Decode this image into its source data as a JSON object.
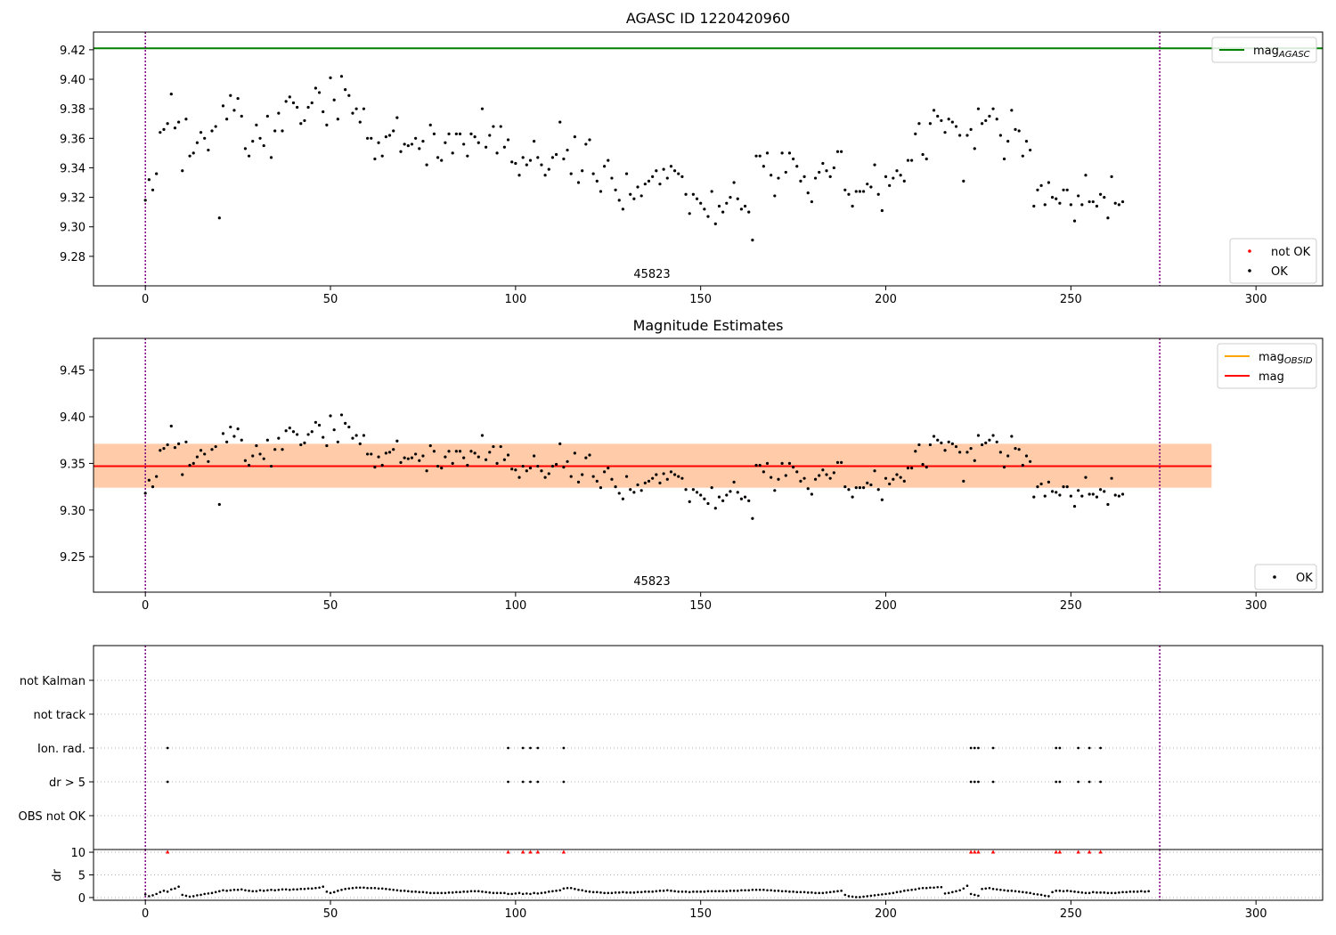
{
  "chart_data": [
    {
      "type": "scatter",
      "title": "AGASC ID 1220420960",
      "annotation": "45823",
      "xlim": [
        -14,
        318
      ],
      "ylim": [
        9.26,
        9.432
      ],
      "xticks": [
        0,
        50,
        100,
        150,
        200,
        250,
        300
      ],
      "yticks": [
        9.28,
        9.3,
        9.32,
        9.34,
        9.36,
        9.38,
        9.4,
        9.42
      ],
      "vlines": [
        0,
        274
      ],
      "grid": false,
      "hlines": [
        {
          "y": 9.421,
          "color": "#008000",
          "label_base": "mag",
          "label_sub": "AGASC"
        }
      ],
      "legends": [
        {
          "position": "top-right",
          "entries": [
            {
              "kind": "line",
              "color": "#008000",
              "base": "mag",
              "sub": "AGASC"
            }
          ]
        },
        {
          "position": "bottom-right",
          "entries": [
            {
              "kind": "marker",
              "color": "#ff0000",
              "base": "not OK",
              "sub": ""
            },
            {
              "kind": "marker",
              "color": "#000000",
              "base": "OK",
              "sub": ""
            }
          ]
        }
      ],
      "series": [
        {
          "name": "OK",
          "color": "#000000",
          "points": "mag"
        }
      ]
    },
    {
      "type": "scatter",
      "title": "Magnitude Estimates",
      "annotation": "45823",
      "xlim": [
        -14,
        318
      ],
      "ylim": [
        9.212,
        9.484
      ],
      "xticks": [
        0,
        50,
        100,
        150,
        200,
        250,
        300
      ],
      "yticks": [
        9.25,
        9.3,
        9.35,
        9.4,
        9.45
      ],
      "vlines": [
        0,
        274
      ],
      "grid": false,
      "mag_obsid": 9.347,
      "mag_obsid_band": [
        9.324,
        9.371
      ],
      "mag": 9.347,
      "mag_band": [
        9.324,
        9.371
      ],
      "band_x_range": [
        -14,
        288
      ],
      "legends": [
        {
          "position": "top-right",
          "entries": [
            {
              "kind": "line",
              "color": "#ffa500",
              "base": "mag",
              "sub": "OBSID"
            },
            {
              "kind": "line",
              "color": "#ff0000",
              "base": "mag",
              "sub": ""
            }
          ]
        },
        {
          "position": "bottom-right",
          "entries": [
            {
              "kind": "marker",
              "color": "#000000",
              "base": "OK",
              "sub": ""
            }
          ]
        }
      ],
      "series": [
        {
          "name": "OK",
          "color": "#000000",
          "points": "mag"
        }
      ]
    },
    {
      "type": "scatter",
      "xlim": [
        -14,
        318
      ],
      "categories": [
        "not Kalman",
        "not track",
        "Ion. rad.",
        "dr > 5",
        "OBS not OK"
      ],
      "flag_indices": [
        6,
        98,
        102,
        104,
        106,
        113,
        223,
        224,
        225,
        229,
        246,
        247,
        252,
        255,
        258
      ],
      "flags": {
        "not Kalman": [],
        "not track": [],
        "Ion. rad.": "flag_indices",
        "dr > 5": "flag_indices",
        "OBS not OK": []
      },
      "vlines": [
        0,
        274
      ],
      "grid": true
    },
    {
      "type": "scatter",
      "ylabel": "dr",
      "xlim": [
        -14,
        318
      ],
      "ylim": [
        -0.6,
        10.6
      ],
      "yticks": [
        0,
        5,
        10
      ],
      "xticks": [
        0,
        50,
        100,
        150,
        200,
        250,
        300
      ],
      "vlines": [
        0,
        274
      ],
      "grid": true,
      "capped_value": 10,
      "capped_color": "#ff0000"
    }
  ],
  "series_data": {
    "x_start": 0,
    "mag": [
      9.318,
      9.332,
      9.325,
      9.336,
      9.364,
      9.366,
      9.37,
      9.39,
      9.367,
      9.371,
      9.338,
      9.373,
      9.348,
      9.35,
      9.357,
      9.364,
      9.36,
      9.352,
      9.365,
      9.368,
      9.306,
      9.382,
      9.373,
      9.389,
      9.379,
      9.387,
      9.375,
      9.353,
      9.348,
      9.358,
      9.369,
      9.36,
      9.355,
      9.375,
      9.347,
      9.365,
      9.377,
      9.365,
      9.385,
      9.388,
      9.384,
      9.381,
      9.37,
      9.372,
      9.381,
      9.384,
      9.394,
      9.391,
      9.378,
      9.369,
      9.401,
      9.386,
      9.373,
      9.402,
      9.393,
      9.389,
      9.377,
      9.38,
      9.371,
      9.38,
      9.36,
      9.36,
      9.346,
      9.357,
      9.348,
      9.361,
      9.362,
      9.365,
      9.374,
      9.351,
      9.356,
      9.355,
      9.356,
      9.36,
      9.353,
      9.358,
      9.342,
      9.369,
      9.363,
      9.347,
      9.345,
      9.357,
      9.363,
      9.35,
      9.363,
      9.363,
      9.356,
      9.348,
      9.363,
      9.361,
      9.357,
      9.38,
      9.354,
      9.362,
      9.368,
      9.35,
      9.368,
      9.354,
      9.359,
      9.344,
      9.343,
      9.335,
      9.347,
      9.342,
      9.345,
      9.358,
      9.347,
      9.342,
      9.335,
      9.339,
      9.347,
      9.349,
      9.371,
      9.346,
      9.352,
      9.336,
      9.361,
      9.33,
      9.338,
      9.356,
      9.359,
      9.336,
      9.331,
      9.324,
      9.341,
      9.345,
      9.333,
      9.325,
      9.318,
      9.312,
      9.336,
      9.322,
      9.319,
      9.327,
      9.321,
      9.329,
      9.331,
      9.334,
      9.338,
      9.329,
      9.339,
      9.333,
      9.341,
      9.338,
      9.336,
      9.334,
      9.322,
      9.309,
      9.322,
      9.319,
      9.316,
      9.312,
      9.307,
      9.324,
      9.302,
      9.314,
      9.31,
      9.316,
      9.32,
      9.33,
      9.319,
      9.312,
      9.314,
      9.31,
      9.291,
      9.348,
      9.348,
      9.341,
      9.35,
      9.335,
      9.321,
      9.333,
      9.35,
      9.337,
      9.35,
      9.346,
      9.341,
      9.331,
      9.334,
      9.323,
      9.317,
      9.333,
      9.337,
      9.343,
      9.338,
      9.334,
      9.34,
      9.351,
      9.351,
      9.325,
      9.322,
      9.314,
      9.324,
      9.324,
      9.324,
      9.329,
      9.327,
      9.342,
      9.322,
      9.311,
      9.334,
      9.328,
      9.333,
      9.338,
      9.335,
      9.331,
      9.345,
      9.345,
      9.363,
      9.37,
      9.349,
      9.346,
      9.37,
      9.379,
      9.375,
      9.372,
      9.364,
      9.373,
      9.371,
      9.368,
      9.362,
      9.331,
      9.362,
      9.366,
      9.353,
      9.38,
      9.37,
      9.372,
      9.375,
      9.38,
      9.373,
      9.362,
      9.346,
      9.358,
      9.379,
      9.366,
      9.365,
      9.348,
      9.358,
      9.352,
      9.314,
      9.325,
      9.328,
      9.315,
      9.33,
      9.32,
      9.319,
      9.316,
      9.325,
      9.325,
      9.315,
      9.304,
      9.321,
      9.315,
      9.335,
      9.317,
      9.317,
      9.314,
      9.322,
      9.32,
      9.306,
      9.334,
      9.316,
      9.315,
      9.317
    ],
    "dr": [
      0.7,
      0.3,
      0.5,
      0.8,
      1.2,
      1.5,
      1.3,
      1.8,
      2.0,
      2.4,
      0.6,
      0.4,
      0.2,
      0.3,
      0.5,
      0.6,
      0.8,
      0.9,
      1.0,
      1.2,
      1.4,
      1.6,
      1.5,
      1.6,
      1.7,
      1.7,
      1.8,
      1.6,
      1.5,
      1.4,
      1.4,
      1.6,
      1.5,
      1.6,
      1.7,
      1.6,
      1.7,
      1.8,
      1.8,
      1.7,
      1.8,
      1.8,
      1.9,
      1.9,
      2.0,
      2.0,
      2.1,
      2.2,
      2.4,
      1.3,
      1.0,
      1.2,
      1.5,
      1.7,
      1.9,
      2.0,
      2.1,
      2.2,
      2.2,
      2.2,
      2.1,
      2.1,
      2.1,
      2.0,
      2.0,
      1.9,
      1.8,
      1.7,
      1.6,
      1.5,
      1.5,
      1.4,
      1.3,
      1.3,
      1.2,
      1.2,
      1.1,
      1.0,
      1.0,
      1.0,
      1.0,
      1.0,
      1.1,
      1.1,
      1.2,
      1.2,
      1.3,
      1.3,
      1.4,
      1.4,
      1.4,
      1.3,
      1.2,
      1.1,
      1.0,
      1.0,
      1.0,
      1.0,
      0.8,
      0.8,
      0.9,
      1.0,
      0.8,
      0.9,
      0.8,
      1.0,
      0.9,
      1.0,
      1.1,
      1.3,
      1.4,
      1.5,
      1.6,
      2.0,
      2.1,
      2.1,
      1.9,
      1.7,
      1.6,
      1.4,
      1.3,
      1.2,
      1.2,
      1.1,
      1.0,
      1.0,
      1.0,
      1.1,
      1.1,
      1.2,
      1.1,
      1.1,
      1.1,
      1.2,
      1.2,
      1.3,
      1.3,
      1.3,
      1.4,
      1.5,
      1.5,
      1.6,
      1.5,
      1.4,
      1.3,
      1.3,
      1.3,
      1.2,
      1.3,
      1.3,
      1.3,
      1.3,
      1.4,
      1.4,
      1.4,
      1.4,
      1.4,
      1.4,
      1.5,
      1.5,
      1.5,
      1.6,
      1.6,
      1.6,
      1.7,
      1.7,
      1.7,
      1.7,
      1.6,
      1.6,
      1.5,
      1.5,
      1.4,
      1.4,
      1.3,
      1.3,
      1.2,
      1.2,
      1.2,
      1.1,
      1.1,
      1.0,
      1.0,
      1.0,
      1.1,
      1.2,
      1.3,
      1.4,
      1.5,
      0.6,
      0.3,
      0.2,
      0.1,
      0.1,
      0.2,
      0.3,
      0.4,
      0.5,
      0.6,
      0.7,
      0.8,
      0.9,
      1.0,
      1.2,
      1.3,
      1.5,
      1.6,
      1.7,
      1.8,
      2.0,
      2.1,
      2.1,
      2.2,
      2.2,
      2.3,
      2.3,
      0.9,
      1.0,
      1.2,
      1.4,
      1.6,
      2.0,
      2.6,
      0.8,
      0.6,
      0.4,
      1.9,
      2.0,
      2.1,
      1.9,
      1.8,
      1.7,
      1.6,
      1.5,
      1.5,
      1.4,
      1.3,
      1.2,
      1.1,
      1.0,
      0.8,
      0.7,
      0.6,
      0.4,
      0.3,
      1.2,
      1.5,
      1.5,
      1.4,
      1.5,
      1.4,
      1.3,
      1.2,
      1.1,
      1.0,
      1.0,
      1.2,
      1.1,
      1.1,
      1.1,
      1.0,
      1.0,
      1.0,
      1.1,
      1.2,
      1.2,
      1.3,
      1.3,
      1.3,
      1.4,
      1.3,
      1.4
    ]
  }
}
